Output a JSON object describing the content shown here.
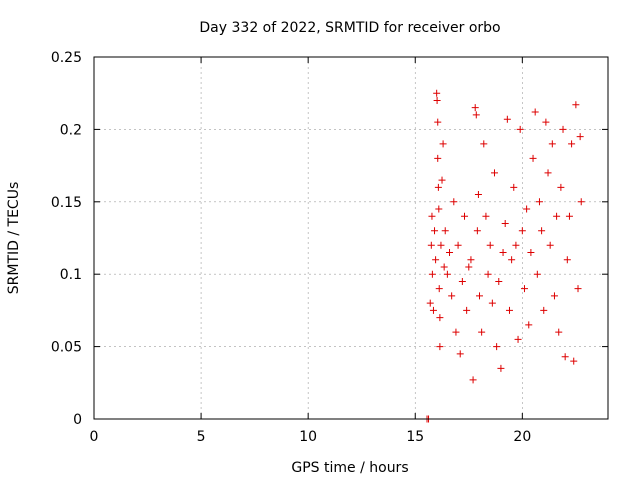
{
  "chart_data": {
    "type": "scatter",
    "title": "Day 332 of 2022, SRMTID for receiver orbo",
    "xlabel": "GPS time / hours",
    "ylabel": "SRMTID / TECUs",
    "xlim": [
      0,
      24
    ],
    "ylim": [
      0,
      0.25
    ],
    "x_ticks": [
      "0",
      "5",
      "10",
      "15",
      "20"
    ],
    "y_ticks": [
      "0",
      "0.05",
      "0.1",
      "0.15",
      "0.2",
      "0.25"
    ],
    "grid": true,
    "legend": "none",
    "colors": {
      "marker": "#dd0000",
      "grid": "#a0a0a0",
      "axes": "#000000"
    },
    "series": [
      {
        "marker": "plus",
        "color": "#dd0000",
        "x_range": [
          15.5,
          22.8
        ],
        "points": [
          [
            15.55,
            0.0
          ],
          [
            15.62,
            0.0
          ],
          [
            15.7,
            0.08
          ],
          [
            15.75,
            0.12
          ],
          [
            15.78,
            0.14
          ],
          [
            15.8,
            0.1
          ],
          [
            15.85,
            0.075
          ],
          [
            15.9,
            0.13
          ],
          [
            15.95,
            0.11
          ],
          [
            16.0,
            0.225
          ],
          [
            16.02,
            0.22
          ],
          [
            16.05,
            0.205
          ],
          [
            16.05,
            0.18
          ],
          [
            16.08,
            0.16
          ],
          [
            16.1,
            0.145
          ],
          [
            16.12,
            0.09
          ],
          [
            16.15,
            0.07
          ],
          [
            16.15,
            0.05
          ],
          [
            16.2,
            0.12
          ],
          [
            16.25,
            0.165
          ],
          [
            16.3,
            0.19
          ],
          [
            16.35,
            0.105
          ],
          [
            16.4,
            0.13
          ],
          [
            16.5,
            0.1
          ],
          [
            16.6,
            0.115
          ],
          [
            16.7,
            0.085
          ],
          [
            16.8,
            0.15
          ],
          [
            16.9,
            0.06
          ],
          [
            17.0,
            0.12
          ],
          [
            17.1,
            0.045
          ],
          [
            17.2,
            0.095
          ],
          [
            17.3,
            0.14
          ],
          [
            17.4,
            0.075
          ],
          [
            17.5,
            0.105
          ],
          [
            17.6,
            0.11
          ],
          [
            17.7,
            0.027
          ],
          [
            17.8,
            0.215
          ],
          [
            17.85,
            0.21
          ],
          [
            17.9,
            0.13
          ],
          [
            17.95,
            0.155
          ],
          [
            18.0,
            0.085
          ],
          [
            18.1,
            0.06
          ],
          [
            18.2,
            0.19
          ],
          [
            18.3,
            0.14
          ],
          [
            18.4,
            0.1
          ],
          [
            18.5,
            0.12
          ],
          [
            18.6,
            0.08
          ],
          [
            18.7,
            0.17
          ],
          [
            18.8,
            0.05
          ],
          [
            18.9,
            0.095
          ],
          [
            19.0,
            0.035
          ],
          [
            19.1,
            0.115
          ],
          [
            19.2,
            0.135
          ],
          [
            19.3,
            0.207
          ],
          [
            19.4,
            0.075
          ],
          [
            19.5,
            0.11
          ],
          [
            19.6,
            0.16
          ],
          [
            19.7,
            0.12
          ],
          [
            19.8,
            0.055
          ],
          [
            19.9,
            0.2
          ],
          [
            20.0,
            0.13
          ],
          [
            20.1,
            0.09
          ],
          [
            20.2,
            0.145
          ],
          [
            20.3,
            0.065
          ],
          [
            20.4,
            0.115
          ],
          [
            20.5,
            0.18
          ],
          [
            20.6,
            0.212
          ],
          [
            20.7,
            0.1
          ],
          [
            20.8,
            0.15
          ],
          [
            20.9,
            0.13
          ],
          [
            21.0,
            0.075
          ],
          [
            21.1,
            0.205
          ],
          [
            21.2,
            0.17
          ],
          [
            21.3,
            0.12
          ],
          [
            21.4,
            0.19
          ],
          [
            21.5,
            0.085
          ],
          [
            21.6,
            0.14
          ],
          [
            21.7,
            0.06
          ],
          [
            21.8,
            0.16
          ],
          [
            21.9,
            0.2
          ],
          [
            22.0,
            0.043
          ],
          [
            22.1,
            0.11
          ],
          [
            22.2,
            0.14
          ],
          [
            22.3,
            0.19
          ],
          [
            22.4,
            0.04
          ],
          [
            22.5,
            0.217
          ],
          [
            22.6,
            0.09
          ],
          [
            22.7,
            0.195
          ],
          [
            22.75,
            0.15
          ]
        ]
      }
    ]
  }
}
